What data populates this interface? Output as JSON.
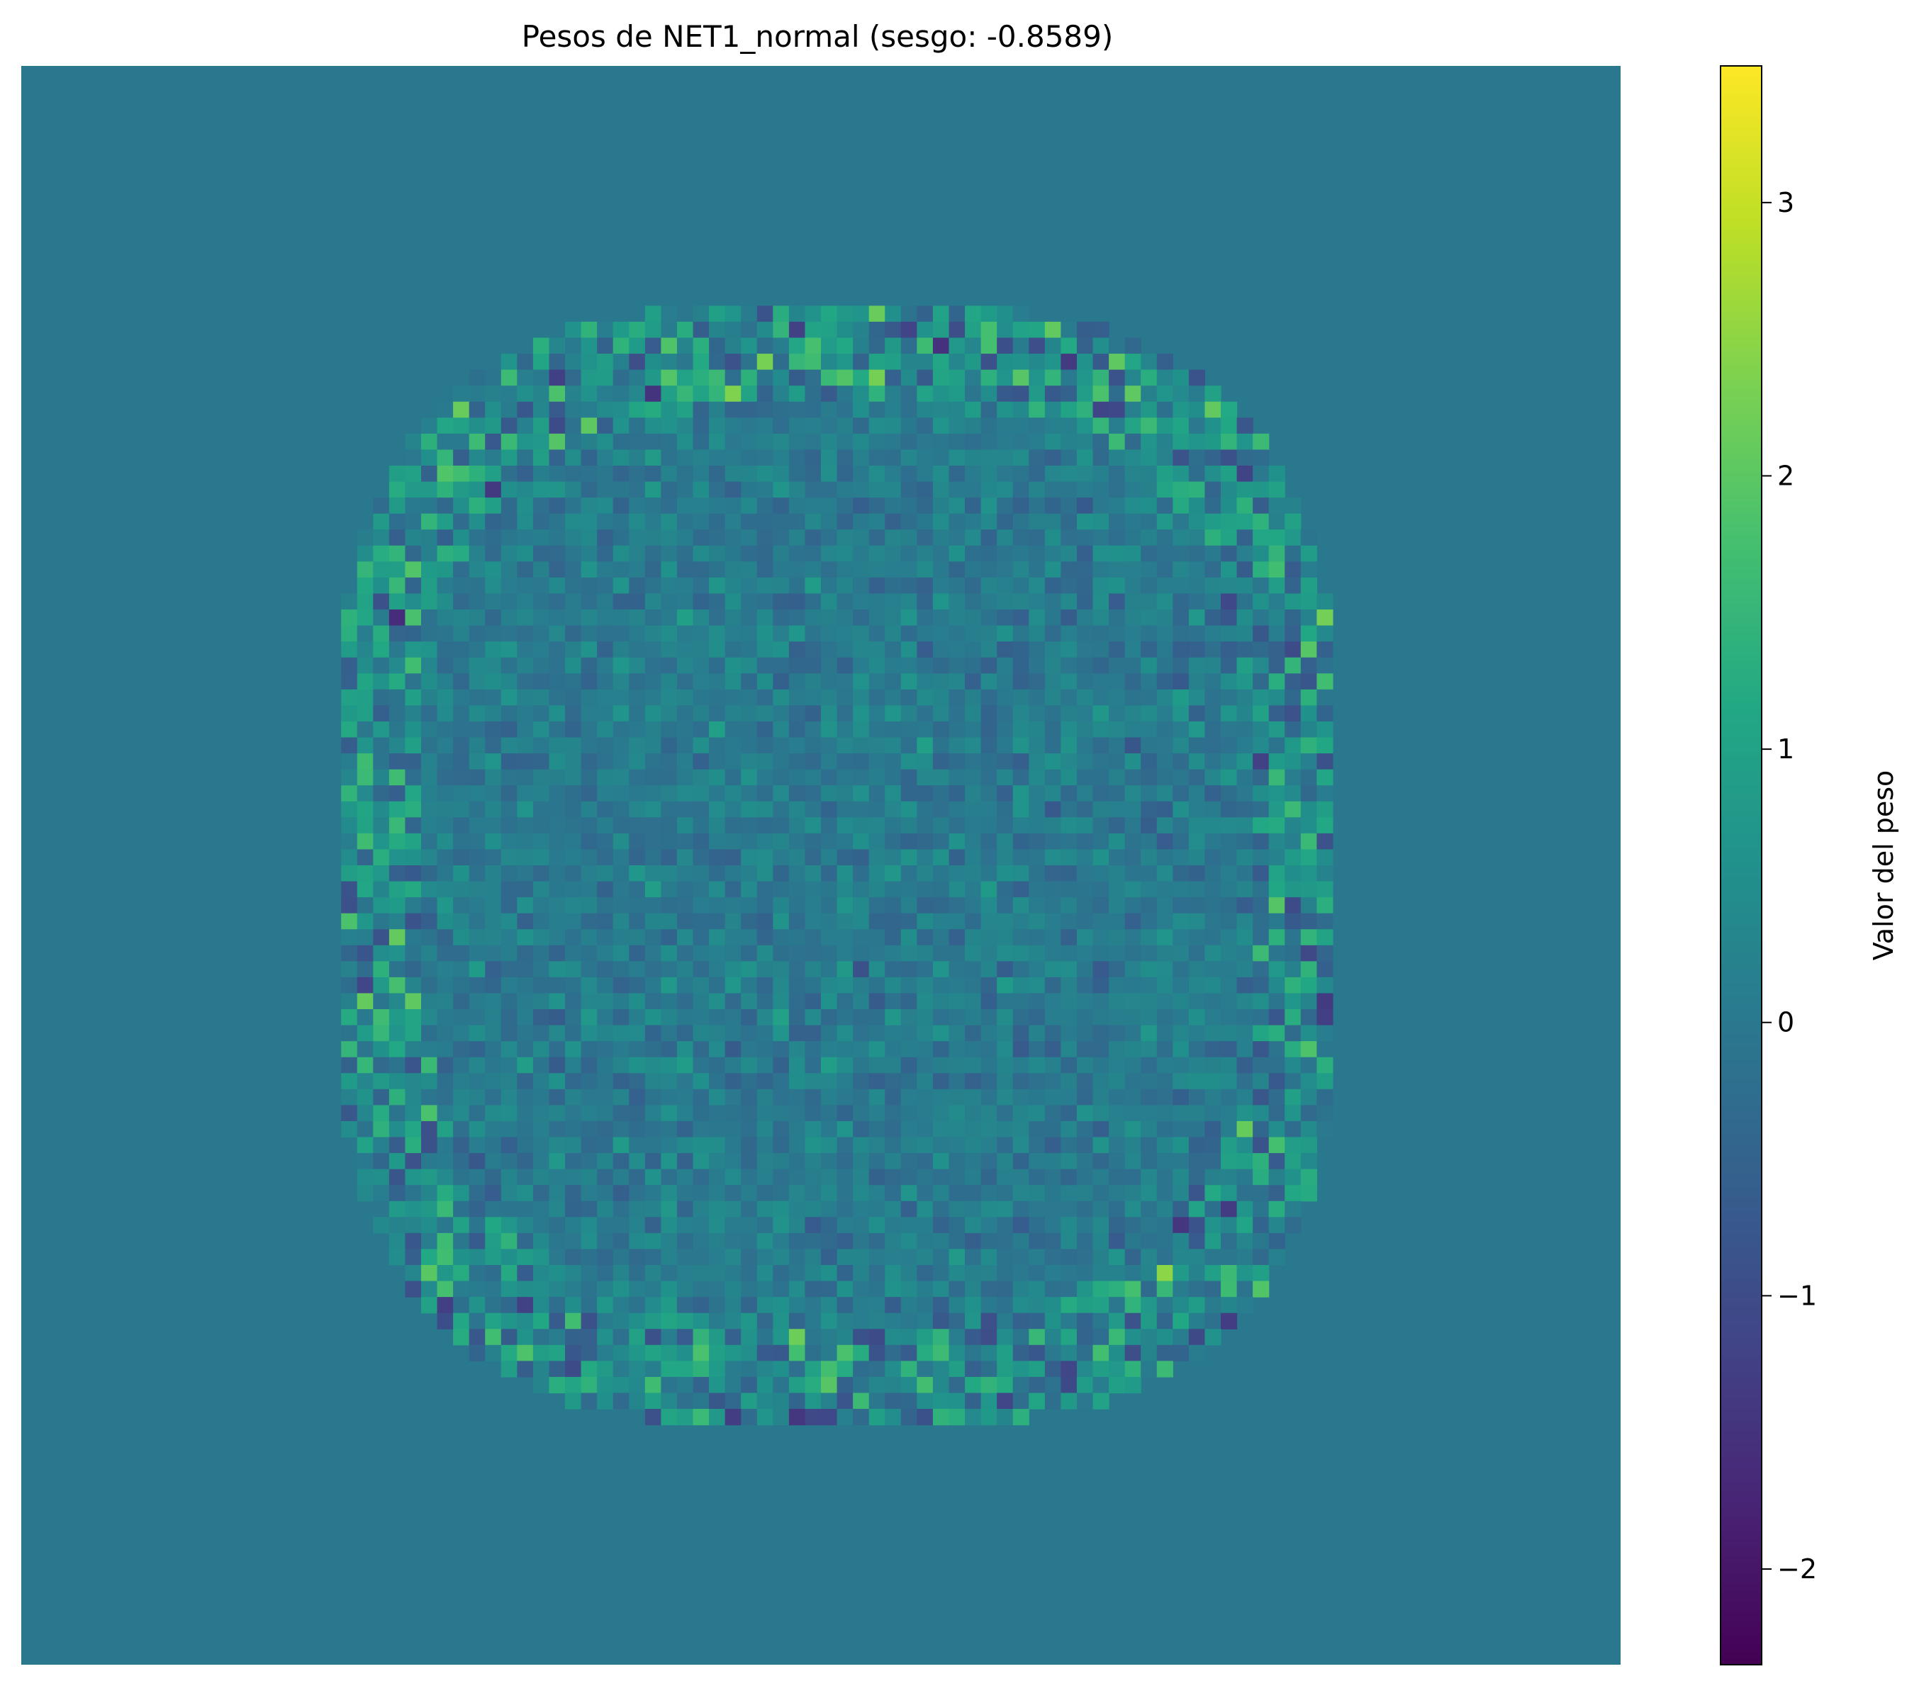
{
  "chart_data": {
    "type": "heatmap",
    "title": "Pesos de NET1_normal (sesgo: -0.8589)",
    "grid_shape": [
      100,
      100
    ],
    "background_value": 0,
    "weight_region": {
      "description_shape": "rounded-square blob of noisy weights",
      "value_range_typical": [
        -1.0,
        1.5
      ],
      "edge_values_range": [
        -2.3,
        3.5
      ]
    },
    "colorbar": {
      "label": "Valor del peso",
      "min": -2.35,
      "max": 3.5,
      "ticks": [
        {
          "value": 3,
          "label": "3"
        },
        {
          "value": 2,
          "label": "2"
        },
        {
          "value": 1,
          "label": "1"
        },
        {
          "value": 0,
          "label": "0"
        },
        {
          "value": -1,
          "label": "−1"
        },
        {
          "value": -2,
          "label": "−2"
        }
      ],
      "colormap": "viridis"
    },
    "axes_visible": false,
    "grid": false
  }
}
